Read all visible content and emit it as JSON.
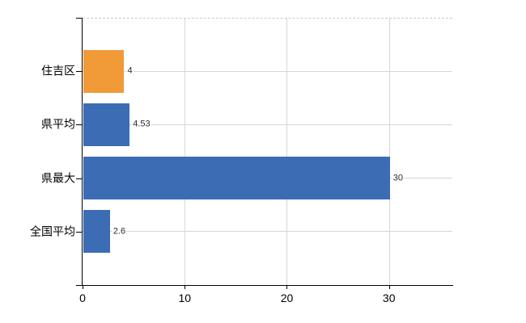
{
  "chart_data": {
    "type": "bar",
    "orientation": "horizontal",
    "title": "",
    "xlabel": "",
    "ylabel": "",
    "categories": [
      "住吉区",
      "県平均",
      "県最大",
      "全国平均"
    ],
    "values": [
      4,
      4.53,
      30,
      2.6
    ],
    "value_labels": [
      "4",
      "4.53",
      "30",
      "2.6"
    ],
    "bar_colors": [
      "#f09a38",
      "#3c6cb4",
      "#3c6cb4",
      "#3c6cb4"
    ],
    "x_ticks": [
      0,
      10,
      20,
      30
    ],
    "x_tick_labels": [
      "0",
      "10",
      "20",
      "30"
    ],
    "xlim": [
      0,
      36.2
    ],
    "grid": true,
    "legend": false
  },
  "colors": {
    "bar_blue": "#3c6cb4",
    "bar_orange": "#f09a38",
    "gridline": "#d6d6d2",
    "top_border": "#c9c9c9",
    "axis": "#000000",
    "label_text": "#000000",
    "value_text": "#2b2b2b",
    "background": "#ffffff"
  }
}
